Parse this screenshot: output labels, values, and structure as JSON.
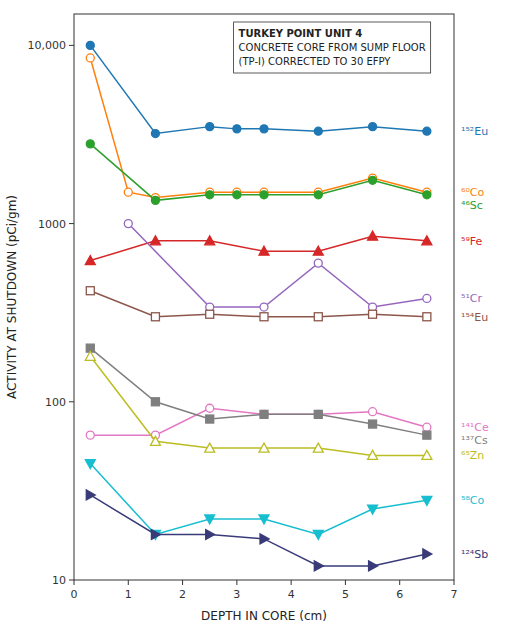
{
  "chart_data": {
    "type": "line",
    "title": "TURKEY POINT UNIT 4",
    "subtitle": [
      "CONCRETE CORE FROM SUMP FLOOR",
      "(TP-I) CORRECTED TO 30 EFPY"
    ],
    "x_label": "DEPTH IN CORE (cm)",
    "y_label": "ACTIVITY AT SHUTDOWN (pCi/gm)",
    "log": "y",
    "xlim": [
      0,
      7
    ],
    "xticks": [
      0,
      1,
      2,
      3,
      4,
      5,
      6,
      7
    ],
    "ylim": [
      10,
      15000
    ],
    "yticks": [
      10,
      100,
      1000,
      {
        "value": 10000,
        "label": "10,000"
      }
    ],
    "series": [
      {
        "name": "¹⁵²Eu",
        "x": [
          0.3,
          1.5,
          2.5,
          3.0,
          3.5,
          4.5,
          5.5,
          6.5
        ],
        "values": [
          10000,
          3200,
          3500,
          3400,
          3400,
          3300,
          3500,
          3300
        ],
        "marker": "circle",
        "line_style": "solid"
      },
      {
        "name": "⁶⁰Co",
        "x": [
          0.3,
          1.0,
          1.5,
          2.5,
          3.0,
          3.5,
          4.5,
          5.5,
          6.5
        ],
        "values": [
          8500,
          1500,
          1400,
          1500,
          1500,
          1500,
          1500,
          1800,
          1500
        ],
        "marker": "circle-open",
        "line_style": "solid"
      },
      {
        "name": "⁴⁶Sc",
        "x": [
          0.3,
          1.5,
          2.5,
          3.0,
          3.5,
          4.5,
          5.5,
          6.5
        ],
        "values": [
          2800,
          1350,
          1450,
          1450,
          1450,
          1450,
          1750,
          1450
        ],
        "marker": "circle",
        "line_style": "solid"
      },
      {
        "name": "⁵⁹Fe",
        "x": [
          0.3,
          1.5,
          2.5,
          3.5,
          4.5,
          5.5,
          6.5
        ],
        "values": [
          620,
          800,
          800,
          700,
          700,
          850,
          800
        ],
        "marker": "triangle-up",
        "line_style": "solid"
      },
      {
        "name": "⁵¹Cr",
        "x": [
          1.0,
          2.5,
          3.5,
          4.5,
          5.5,
          6.5
        ],
        "values": [
          1000,
          340,
          340,
          600,
          340,
          380
        ],
        "marker": "circle-open",
        "line_style": "solid"
      },
      {
        "name": "¹⁵⁴Eu",
        "x": [
          0.3,
          1.5,
          2.5,
          3.5,
          4.5,
          5.5,
          6.5
        ],
        "values": [
          420,
          300,
          310,
          300,
          300,
          310,
          300
        ],
        "marker": "square-open",
        "line_style": "solid"
      },
      {
        "name": "¹⁴¹Ce",
        "x": [
          0.3,
          1.5,
          2.5,
          3.5,
          4.5,
          5.5,
          6.5
        ],
        "values": [
          65,
          65,
          92,
          85,
          85,
          88,
          72
        ],
        "marker": "circle-open",
        "line_style": "solid"
      },
      {
        "name": "¹³⁷Cs",
        "x": [
          0.3,
          1.5,
          2.5,
          3.5,
          4.5,
          5.5,
          6.5
        ],
        "values": [
          200,
          100,
          80,
          85,
          85,
          75,
          65
        ],
        "marker": "square",
        "line_style": "solid"
      },
      {
        "name": "⁶⁵Zn",
        "x": [
          0.3,
          1.5,
          2.5,
          3.5,
          4.5,
          5.5,
          6.5
        ],
        "values": [
          180,
          60,
          55,
          55,
          55,
          50,
          50
        ],
        "marker": "triangle-up-open",
        "line_style": "solid"
      },
      {
        "name": "⁵⁸Co",
        "x": [
          0.3,
          1.5,
          2.5,
          3.5,
          4.5,
          5.5,
          6.5
        ],
        "values": [
          45,
          18,
          22,
          22,
          18,
          25,
          28
        ],
        "marker": "triangle-down",
        "line_style": "solid"
      },
      {
        "name": "¹²⁴Sb",
        "x": [
          0.3,
          1.5,
          2.5,
          3.5,
          4.5,
          5.5,
          6.5
        ],
        "values": [
          30,
          18,
          18,
          17,
          12,
          12,
          14
        ],
        "marker": "triangle-right",
        "line_style": "solid"
      }
    ]
  }
}
